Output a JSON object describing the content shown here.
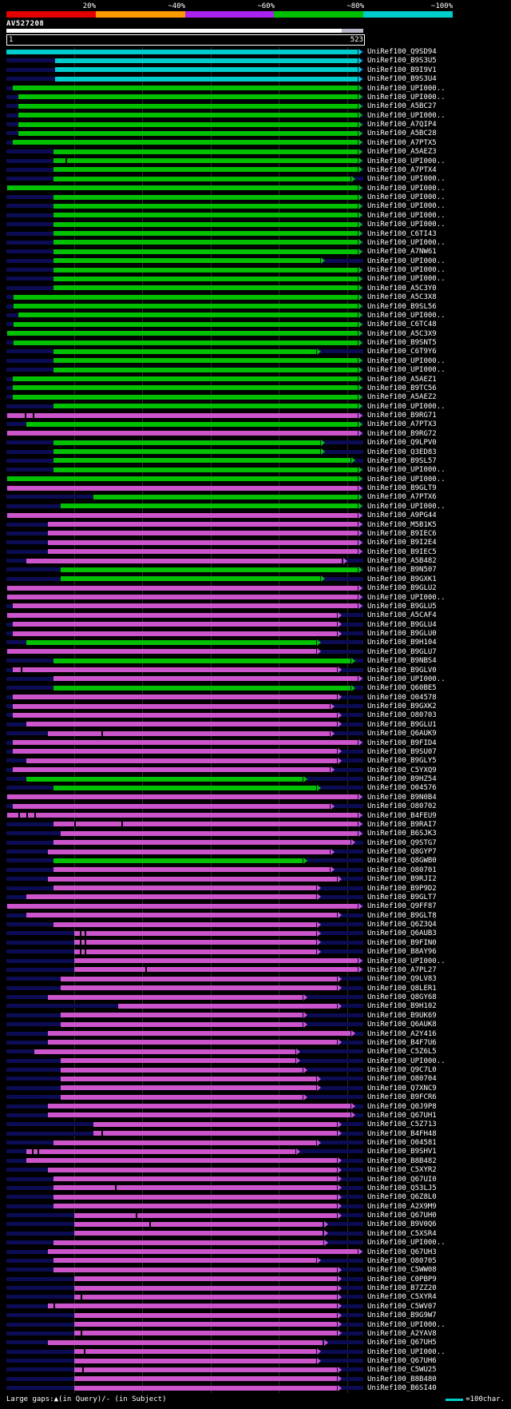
{
  "header": {
    "scale": {
      "labels": [
        "20%",
        "~40%",
        "~60%",
        "~80%",
        "~100%"
      ],
      "colors": [
        "#e00000",
        "#ff9900",
        "#aa22ee",
        "#00c000",
        "#00cccc"
      ]
    },
    "query_label": "AV527208",
    "ruler": {
      "start": "1",
      "end": "523"
    }
  },
  "footer": {
    "gaps_text": "Large gaps:▲(in Query)/- (in Subject)",
    "legend_text": "=100char.",
    "legend_swatch_color": "#00cccc"
  },
  "chart_data": {
    "type": "bar",
    "orientation": "horizontal",
    "title": "AV527208",
    "x_range": [
      1,
      523
    ],
    "gridlines": [
      100,
      200,
      300,
      400,
      500
    ],
    "colors": {
      "c": "#00cccc",
      "g": "#00c000",
      "m": "#cc55cc"
    },
    "color_legend": {
      "c": "~100%",
      "g": "~80%",
      "m": "~60%"
    },
    "rows": [
      [
        "UniRef100_Q9SD94",
        "c",
        1,
        523
      ],
      [
        "UniRef100_B9S3U5",
        "c",
        72,
        523
      ],
      [
        "UniRef100_B9I9V1",
        "c",
        72,
        523
      ],
      [
        "UniRef100_B9S3U4",
        "c",
        72,
        523
      ],
      [
        "UniRef100_UPI000..",
        "g",
        10,
        523
      ],
      [
        "UniRef100_UPI000..",
        "g",
        18,
        523
      ],
      [
        "UniRef100_A5BC27",
        "g",
        18,
        523
      ],
      [
        "UniRef100_UPI000..",
        "g",
        18,
        523
      ],
      [
        "UniRef100_A7QIP4",
        "g",
        18,
        523
      ],
      [
        "UniRef100_A5BC28",
        "g",
        18,
        523
      ],
      [
        "UniRef100_A7PTX5",
        "g",
        10,
        523
      ],
      [
        "UniRef100_A5AEZ3",
        "g",
        70,
        523
      ],
      [
        "UniRef100_UPI000..",
        "g",
        70,
        523,
        [
          88
        ]
      ],
      [
        "UniRef100_A7PTX4",
        "g",
        70,
        523
      ],
      [
        "UniRef100_UPI000..",
        "g",
        70,
        512
      ],
      [
        "UniRef100_UPI000..",
        "g",
        2,
        523
      ],
      [
        "UniRef100_UPI000..",
        "g",
        70,
        523
      ],
      [
        "UniRef100_UPI000..",
        "g",
        70,
        523
      ],
      [
        "UniRef100_UPI000..",
        "g",
        70,
        523
      ],
      [
        "UniRef100_UPI000..",
        "g",
        70,
        523
      ],
      [
        "UniRef100_C6TI43",
        "g",
        70,
        523
      ],
      [
        "UniRef100_UPI000..",
        "g",
        70,
        523
      ],
      [
        "UniRef100_A7NW61",
        "g",
        70,
        523
      ],
      [
        "UniRef100_UPI000..",
        "g",
        70,
        468
      ],
      [
        "UniRef100_UPI000..",
        "g",
        70,
        523
      ],
      [
        "UniRef100_UPI000..",
        "g",
        70,
        523
      ],
      [
        "UniRef100_A5C3Y0",
        "g",
        70,
        523
      ],
      [
        "UniRef100_A5C3X8",
        "g",
        12,
        523
      ],
      [
        "UniRef100_B9SL56",
        "g",
        12,
        523
      ],
      [
        "UniRef100_UPI000..",
        "g",
        18,
        523
      ],
      [
        "UniRef100_C6TC48",
        "g",
        12,
        523
      ],
      [
        "UniRef100_A5C3X9",
        "g",
        2,
        523
      ],
      [
        "UniRef100_B9SNT5",
        "g",
        12,
        523
      ],
      [
        "UniRef100_C6T9Y6",
        "g",
        70,
        462
      ],
      [
        "UniRef100_UPI000..",
        "g",
        70,
        523
      ],
      [
        "UniRef100_UPI000..",
        "g",
        70,
        523
      ],
      [
        "UniRef100_A5AEZ1",
        "g",
        10,
        523
      ],
      [
        "UniRef100_B9TC56",
        "g",
        10,
        523
      ],
      [
        "UniRef100_A5AEZ2",
        "g",
        10,
        523
      ],
      [
        "UniRef100_UPI000..",
        "g",
        70,
        523
      ],
      [
        "UniRef100_B9RG71",
        "m",
        2,
        523,
        [
          28,
          40
        ]
      ],
      [
        "UniRef100_A7PTX3",
        "g",
        30,
        523
      ],
      [
        "UniRef100_B9RG72",
        "m",
        2,
        523
      ],
      [
        "UniRef100_Q9LPV0",
        "g",
        70,
        468
      ],
      [
        "UniRef100_Q3ED83",
        "g",
        70,
        468
      ],
      [
        "UniRef100_B9SL57",
        "g",
        70,
        512
      ],
      [
        "UniRef100_UPI000..",
        "g",
        70,
        523
      ],
      [
        "UniRef100_UPI000..",
        "g",
        2,
        523
      ],
      [
        "UniRef100_B9GLT9",
        "m",
        2,
        523
      ],
      [
        "UniRef100_A7PTX6",
        "g",
        128,
        523
      ],
      [
        "UniRef100_UPI000..",
        "g",
        80,
        523
      ],
      [
        "UniRef100_A9PG44",
        "m",
        2,
        523
      ],
      [
        "UniRef100_M5B1K5",
        "m",
        62,
        523
      ],
      [
        "UniRef100_B9IEC6",
        "m",
        62,
        523
      ],
      [
        "UniRef100_B9I2E4",
        "m",
        62,
        523
      ],
      [
        "UniRef100_B9IEC5",
        "m",
        62,
        523
      ],
      [
        "UniRef100_A5B482",
        "m",
        30,
        500
      ],
      [
        "UniRef100_B9N507",
        "g",
        80,
        523
      ],
      [
        "UniRef100_B9GXK1",
        "g",
        80,
        468
      ],
      [
        "UniRef100_B9GLU2",
        "m",
        2,
        523
      ],
      [
        "UniRef100_UPI000..",
        "m",
        2,
        523
      ],
      [
        "UniRef100_B9GLU5",
        "m",
        10,
        523
      ],
      [
        "UniRef100_A5CAF4",
        "m",
        2,
        492
      ],
      [
        "UniRef100_B9GLU4",
        "m",
        10,
        492
      ],
      [
        "UniRef100_B9GLU0",
        "m",
        10,
        492
      ],
      [
        "UniRef100_B9H104",
        "g",
        30,
        462
      ],
      [
        "UniRef100_B9GLU7",
        "m",
        2,
        462
      ],
      [
        "UniRef100_B9NBS4",
        "g",
        70,
        512
      ],
      [
        "UniRef100_B9GLV0",
        "m",
        10,
        492,
        [
          22
        ]
      ],
      [
        "UniRef100_UPI000..",
        "m",
        70,
        523
      ],
      [
        "UniRef100_Q60BE5",
        "g",
        70,
        512
      ],
      [
        "UniRef100_O04578",
        "m",
        10,
        492
      ],
      [
        "UniRef100_B9GXK2",
        "m",
        10,
        482
      ],
      [
        "UniRef100_O80703",
        "m",
        10,
        492
      ],
      [
        "UniRef100_B9GLU1",
        "m",
        30,
        492
      ],
      [
        "UniRef100_Q6AUK9",
        "m",
        62,
        482,
        [
          140
        ]
      ],
      [
        "UniRef100_B9FID4",
        "m",
        10,
        523
      ],
      [
        "UniRef100_B9SU07",
        "m",
        10,
        492
      ],
      [
        "UniRef100_B9GLY5",
        "m",
        30,
        492
      ],
      [
        "UniRef100_C5YXQ9",
        "m",
        10,
        482
      ],
      [
        "UniRef100_B9HZ54",
        "g",
        30,
        442
      ],
      [
        "UniRef100_O04576",
        "g",
        70,
        462
      ],
      [
        "UniRef100_B9N0B4",
        "m",
        2,
        523
      ],
      [
        "UniRef100_O80702",
        "m",
        10,
        482
      ],
      [
        "UniRef100_B4FEU9",
        "m",
        2,
        523,
        [
          18,
          30,
          42
        ]
      ],
      [
        "UniRef100_B9RAI7",
        "m",
        70,
        523,
        [
          100,
          170
        ]
      ],
      [
        "UniRef100_B6SJK3",
        "m",
        80,
        523
      ],
      [
        "UniRef100_Q9STG7",
        "m",
        70,
        512
      ],
      [
        "UniRef100_Q8GYP7",
        "m",
        62,
        482
      ],
      [
        "UniRef100_Q8GWB0",
        "g",
        70,
        442
      ],
      [
        "UniRef100_O80701",
        "m",
        70,
        482
      ],
      [
        "UniRef100_B9RJI2",
        "m",
        62,
        492
      ],
      [
        "UniRef100_B9P9D2",
        "m",
        70,
        462
      ],
      [
        "UniRef100_B9GLT7",
        "m",
        30,
        462
      ],
      [
        "UniRef100_Q9FF87",
        "m",
        2,
        523
      ],
      [
        "UniRef100_B9GLT8",
        "m",
        30,
        492
      ],
      [
        "UniRef100_Q6Z3Q4",
        "m",
        70,
        462
      ],
      [
        "UniRef100_Q6AUB3",
        "m",
        100,
        462,
        [
          108,
          116
        ]
      ],
      [
        "UniRef100_B9FIN0",
        "m",
        100,
        462,
        [
          108,
          116
        ]
      ],
      [
        "UniRef100_B8AY96",
        "m",
        100,
        462,
        [
          108,
          116
        ]
      ],
      [
        "UniRef100_UPI000..",
        "m",
        100,
        523
      ],
      [
        "UniRef100_A7PL27",
        "m",
        100,
        523,
        [
          205
        ]
      ],
      [
        "UniRef100_Q9LV83",
        "m",
        80,
        492
      ],
      [
        "UniRef100_Q8LER1",
        "m",
        80,
        492
      ],
      [
        "UniRef100_Q8GY68",
        "m",
        62,
        442
      ],
      [
        "UniRef100_B9H102",
        "m",
        165,
        492
      ],
      [
        "UniRef100_B9UK69",
        "m",
        80,
        442
      ],
      [
        "UniRef100_Q6AUK8",
        "m",
        80,
        442
      ],
      [
        "UniRef100_A2Y416",
        "m",
        62,
        512
      ],
      [
        "UniRef100_B4F7U6",
        "m",
        62,
        492
      ],
      [
        "UniRef100_C5Z6L5",
        "m",
        42,
        432
      ],
      [
        "UniRef100_UPI000..",
        "m",
        80,
        432
      ],
      [
        "UniRef100_Q9C7L0",
        "m",
        80,
        442
      ],
      [
        "UniRef100_O80704",
        "m",
        80,
        462
      ],
      [
        "UniRef100_Q7XNC9",
        "m",
        80,
        462
      ],
      [
        "UniRef100_B9FCR6",
        "m",
        80,
        442
      ],
      [
        "UniRef100_Q0J9P8",
        "m",
        62,
        512
      ],
      [
        "UniRef100_Q67UH1",
        "m",
        62,
        512
      ],
      [
        "UniRef100_C5Z713",
        "m",
        128,
        492
      ],
      [
        "UniRef100_B4FH48",
        "m",
        128,
        492,
        [
          140
        ]
      ],
      [
        "UniRef100_O04581",
        "m",
        70,
        462
      ],
      [
        "UniRef100_B9SHV1",
        "m",
        30,
        432,
        [
          38,
          46
        ]
      ],
      [
        "UniRef100_B8B482",
        "m",
        30,
        492
      ],
      [
        "UniRef100_C5XYR2",
        "m",
        62,
        492
      ],
      [
        "UniRef100_Q67UI0",
        "m",
        70,
        492
      ],
      [
        "UniRef100_Q53LJ5",
        "m",
        70,
        492,
        [
          160
        ]
      ],
      [
        "UniRef100_Q6Z8L0",
        "m",
        70,
        492
      ],
      [
        "UniRef100_A2X9M9",
        "m",
        70,
        492
      ],
      [
        "UniRef100_Q67UH0",
        "m",
        100,
        492,
        [
          190
        ]
      ],
      [
        "UniRef100_B9V0Q6",
        "m",
        100,
        472,
        [
          210
        ]
      ],
      [
        "UniRef100_C5XSR4",
        "m",
        100,
        472
      ],
      [
        "UniRef100_UPI000..",
        "m",
        70,
        472
      ],
      [
        "UniRef100_Q67UH3",
        "m",
        62,
        523
      ],
      [
        "UniRef100_O80705",
        "m",
        70,
        462
      ],
      [
        "UniRef100_C5WW08",
        "m",
        70,
        492
      ],
      [
        "UniRef100_C0PBP9",
        "m",
        100,
        492
      ],
      [
        "UniRef100_B7ZZ20",
        "m",
        100,
        492
      ],
      [
        "UniRef100_C5XYR4",
        "m",
        100,
        492,
        [
          110
        ]
      ],
      [
        "UniRef100_C5WV07",
        "m",
        62,
        492,
        [
          70
        ]
      ],
      [
        "UniRef100_B9G9W7",
        "m",
        100,
        492
      ],
      [
        "UniRef100_UPI000..",
        "m",
        100,
        492
      ],
      [
        "UniRef100_A2YAV8",
        "m",
        100,
        492,
        [
          110
        ]
      ],
      [
        "UniRef100_Q67UH5",
        "m",
        62,
        472
      ],
      [
        "UniRef100_UPI000..",
        "m",
        100,
        462,
        [
          115
        ]
      ],
      [
        "UniRef100_Q67UH6",
        "m",
        100,
        462
      ],
      [
        "UniRef100_C5WU25",
        "m",
        100,
        492,
        [
          112
        ]
      ],
      [
        "UniRef100_B8B480",
        "m",
        100,
        492
      ],
      [
        "UniRef100_B6SI40",
        "m",
        100,
        492
      ]
    ]
  }
}
